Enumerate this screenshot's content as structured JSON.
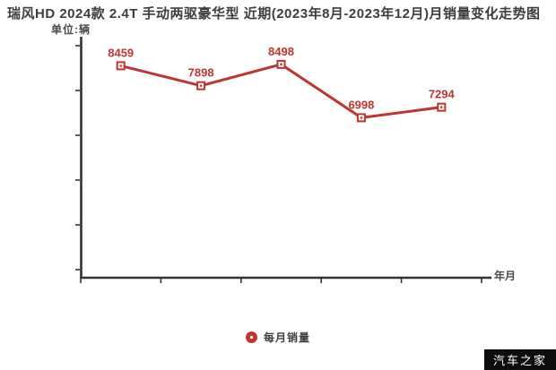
{
  "chart_data": {
    "type": "line",
    "title": "瑞风HD 2024款 2.4T 手动两驱豪华型 近期(2023年8月-2023年12月)月销量变化走势图",
    "unit_label": "单位:辆",
    "xlabel": "年月",
    "ylabel": "单位:辆",
    "categories": [
      "",
      "",
      "",
      "",
      ""
    ],
    "series": [
      {
        "name": "每月销量",
        "values": [
          8459,
          7898,
          8498,
          6998,
          7294
        ]
      }
    ],
    "point_labels": [
      "8459",
      "7898",
      "8498",
      "6998",
      "7294"
    ],
    "ylim": [
      2500,
      9250
    ],
    "y_tick_count": 6,
    "x_tick_count": 6,
    "grid": false,
    "legend_position": "bottom-center",
    "colors": {
      "line": "#c0342f",
      "marker_fill": "#ffffff",
      "axis": "#333333",
      "title_text": "#3d3d3d",
      "secondary_text": "#4a4a4a"
    }
  },
  "watermark": {
    "text": "汽车之家",
    "background": "#0d0d0d",
    "color": "#ffffff"
  }
}
